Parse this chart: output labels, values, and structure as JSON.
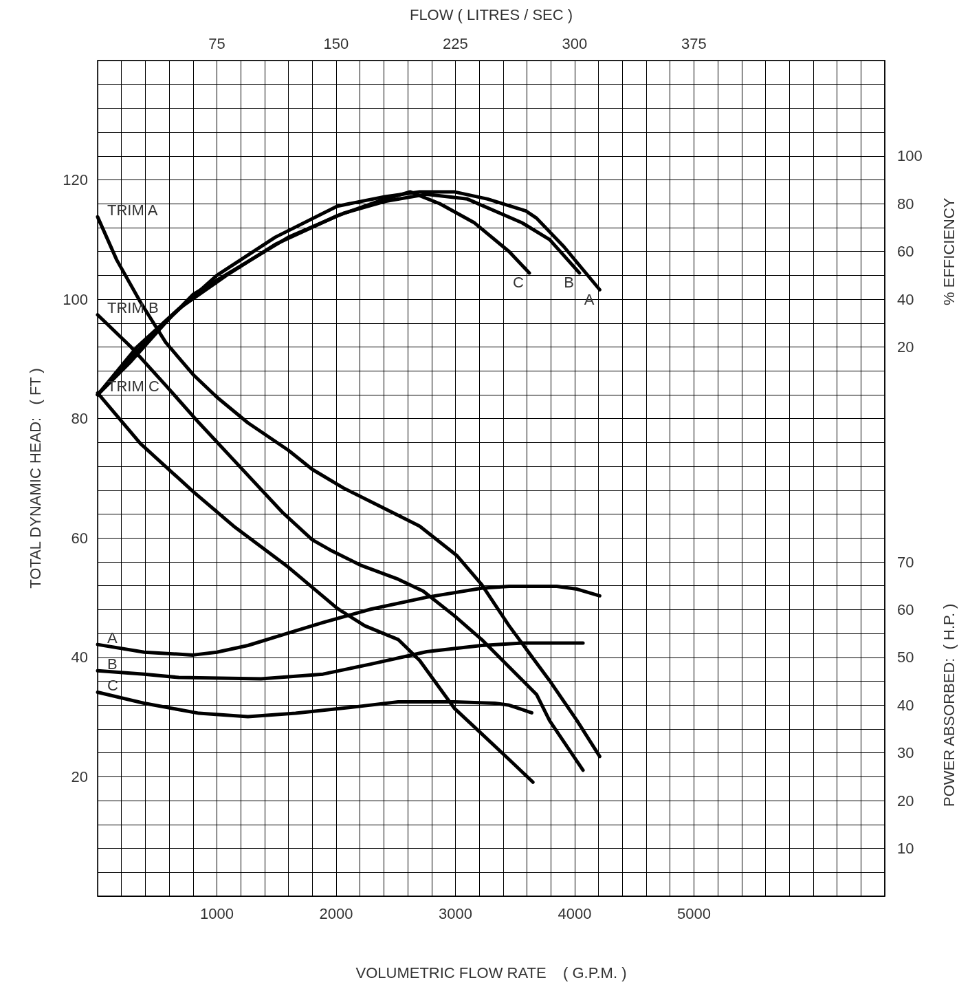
{
  "chart_data": {
    "type": "line",
    "xlabel": "VOLUMETRIC FLOW RATE    ( G.P.M. )",
    "ylabel": "TOTAL DYNAMIC HEAD:   ( FT )",
    "x2label": "FLOW ( LITRES / SEC )",
    "y2label": "% EFFICIENCY",
    "y3label": "POWER ABSORBED:  ( H.P. )",
    "xlim": [
      0,
      6600
    ],
    "xticks": [
      {
        "value": 0,
        "label": null
      },
      {
        "value": 200,
        "label": null
      },
      {
        "value": 400,
        "label": null
      },
      {
        "value": 600,
        "label": null
      },
      {
        "value": 800,
        "label": null
      },
      1000,
      {
        "value": 1200,
        "label": null
      },
      {
        "value": 1400,
        "label": null
      },
      {
        "value": 1600,
        "label": null
      },
      {
        "value": 1800,
        "label": null
      },
      2000,
      {
        "value": 2200,
        "label": null
      },
      {
        "value": 2400,
        "label": null
      },
      {
        "value": 2600,
        "label": null
      },
      {
        "value": 2800,
        "label": null
      },
      3000,
      {
        "value": 3200,
        "label": null
      },
      {
        "value": 3400,
        "label": null
      },
      {
        "value": 3600,
        "label": null
      },
      {
        "value": 3800,
        "label": null
      },
      4000,
      {
        "value": 4200,
        "label": null
      },
      {
        "value": 4400,
        "label": null
      },
      {
        "value": 4600,
        "label": null
      },
      {
        "value": 4800,
        "label": null
      },
      5000,
      {
        "value": 5200,
        "label": null
      },
      {
        "value": 5400,
        "label": null
      },
      {
        "value": 5600,
        "label": null
      },
      {
        "value": 5800,
        "label": null
      },
      {
        "value": 6000,
        "label": null
      },
      {
        "value": 6200,
        "label": null
      },
      {
        "value": 6400,
        "label": null
      },
      {
        "value": 6600,
        "label": null
      }
    ],
    "ylim": [
      0,
      140
    ],
    "yticks": [
      {
        "value": 0,
        "label": null
      },
      {
        "value": 4,
        "label": null
      },
      {
        "value": 8,
        "label": null
      },
      {
        "value": 12,
        "label": null
      },
      {
        "value": 16,
        "label": null
      },
      20,
      {
        "value": 24,
        "label": null
      },
      {
        "value": 28,
        "label": null
      },
      {
        "value": 32,
        "label": null
      },
      {
        "value": 36,
        "label": null
      },
      40,
      {
        "value": 44,
        "label": null
      },
      {
        "value": 48,
        "label": null
      },
      {
        "value": 52,
        "label": null
      },
      {
        "value": 56,
        "label": null
      },
      60,
      {
        "value": 64,
        "label": null
      },
      {
        "value": 68,
        "label": null
      },
      {
        "value": 72,
        "label": null
      },
      {
        "value": 76,
        "label": null
      },
      80,
      {
        "value": 84,
        "label": null
      },
      {
        "value": 88,
        "label": null
      },
      {
        "value": 92,
        "label": null
      },
      {
        "value": 96,
        "label": null
      },
      100,
      {
        "value": 104,
        "label": null
      },
      {
        "value": 108,
        "label": null
      },
      {
        "value": 112,
        "label": null
      },
      {
        "value": 116,
        "label": null
      },
      120,
      {
        "value": 124,
        "label": null
      },
      {
        "value": 128,
        "label": null
      },
      {
        "value": 132,
        "label": null
      },
      {
        "value": 136,
        "label": null
      },
      {
        "value": 140,
        "label": null
      }
    ],
    "x2lim": [
      0,
      495
    ],
    "x2ticks": [
      75,
      150,
      225,
      300,
      375
    ],
    "y2lim": [
      -210,
      140
    ],
    "y2ticks": [
      20,
      40,
      60,
      80,
      100
    ],
    "y3lim": [
      0,
      175
    ],
    "y3ticks": [
      10,
      20,
      30,
      40,
      50,
      60,
      70
    ],
    "grid": true,
    "line_style": "solid",
    "marker": "none",
    "annotations": [
      {
        "text": "TRIM A",
        "x": 0,
        "y": 113.8
      },
      {
        "text": "TRIM B",
        "x": 0,
        "y": 97.4
      },
      {
        "text": "TRIM C",
        "x": 0,
        "y": 84.3
      },
      {
        "text": "C",
        "x": 3620,
        "y": 104.4
      },
      {
        "text": "B",
        "x": 4040,
        "y": 104.4
      },
      {
        "text": "A",
        "x": 4210,
        "y": 101.6
      },
      {
        "text": "A",
        "x": 0,
        "y": 42.16
      },
      {
        "text": "B",
        "x": 0,
        "y": 37.76
      },
      {
        "text": "C",
        "x": 0,
        "y": 34.16
      }
    ],
    "series": [
      {
        "color": "#000000",
        "x": [
          0,
          160,
          360,
          570,
          800,
          1000,
          1260,
          1600,
          1800,
          2060,
          2410,
          2700,
          3010,
          3220,
          3450,
          3790,
          4020,
          4210
        ],
        "values": [
          113.8,
          106.6,
          99.5,
          92.8,
          87.4,
          83.6,
          79.3,
          74.7,
          71.5,
          68.4,
          64.9,
          62.0,
          57.1,
          52.2,
          45.3,
          36.1,
          29.4,
          23.4
        ]
      },
      {
        "color": "#000000",
        "x": [
          0,
          280,
          570,
          850,
          1200,
          1550,
          1800,
          1950,
          2210,
          2520,
          2730,
          2990,
          3220,
          3450,
          3680,
          3790,
          4070
        ],
        "values": [
          97.4,
          92.0,
          85.6,
          79.3,
          71.8,
          64.3,
          59.7,
          58.0,
          55.4,
          53.1,
          51.1,
          47.0,
          43.0,
          38.4,
          33.8,
          29.4,
          21.1
        ]
      },
      {
        "color": "#000000",
        "x": [
          0,
          360,
          800,
          1140,
          1600,
          2010,
          2240,
          2520,
          2700,
          2990,
          3220,
          3450,
          3650
        ],
        "values": [
          84.3,
          75.8,
          67.8,
          62.0,
          55.1,
          48.2,
          45.3,
          43.0,
          39.5,
          31.5,
          27.2,
          22.9,
          19.1
        ]
      },
      {
        "color": "#000000",
        "axis": "y2",
        "x": [
          0,
          280,
          620,
          1000,
          1490,
          2010,
          2410,
          2700,
          2990,
          3270,
          3590,
          3680,
          3910,
          4210
        ],
        "values": [
          0,
          14,
          33,
          50,
          66,
          79,
          83,
          85,
          85,
          82,
          77,
          74,
          62,
          44
        ]
      },
      {
        "color": "#000000",
        "axis": "y2",
        "x": [
          0,
          330,
          800,
          1200,
          1600,
          2060,
          2410,
          2760,
          3100,
          3560,
          3790,
          4040
        ],
        "values": [
          0,
          18,
          42,
          54,
          66,
          76,
          81,
          84,
          82,
          72,
          65,
          51
        ]
      },
      {
        "color": "#000000",
        "axis": "y2",
        "x": [
          0,
          330,
          680,
          1080,
          1490,
          2010,
          2350,
          2620,
          2870,
          3160,
          3450,
          3620
        ],
        "values": [
          0,
          20,
          36,
          50,
          63,
          75,
          81,
          85,
          80,
          72,
          60,
          51
        ]
      },
      {
        "color": "#000000",
        "axis": "y3",
        "x": [
          0,
          390,
          800,
          1000,
          1260,
          1600,
          1890,
          2290,
          2760,
          3220,
          3450,
          3850,
          4020,
          4210
        ],
        "values": [
          52.7,
          51.1,
          50.5,
          51.1,
          52.5,
          55.1,
          57.3,
          60.1,
          62.6,
          64.5,
          64.9,
          64.9,
          64.3,
          62.9
        ]
      },
      {
        "color": "#000000",
        "axis": "y3",
        "x": [
          0,
          390,
          680,
          1370,
          1890,
          2290,
          2760,
          3220,
          3560,
          4070
        ],
        "values": [
          47.2,
          46.5,
          45.8,
          45.5,
          46.5,
          48.6,
          51.2,
          52.5,
          53.0,
          53.0
        ]
      },
      {
        "color": "#000000",
        "axis": "y3",
        "x": [
          0,
          390,
          850,
          1260,
          1660,
          2180,
          2520,
          2990,
          3330,
          3450,
          3640
        ],
        "values": [
          42.7,
          40.4,
          38.3,
          37.6,
          38.3,
          39.7,
          40.7,
          40.7,
          40.4,
          40.0,
          38.4
        ]
      }
    ]
  }
}
